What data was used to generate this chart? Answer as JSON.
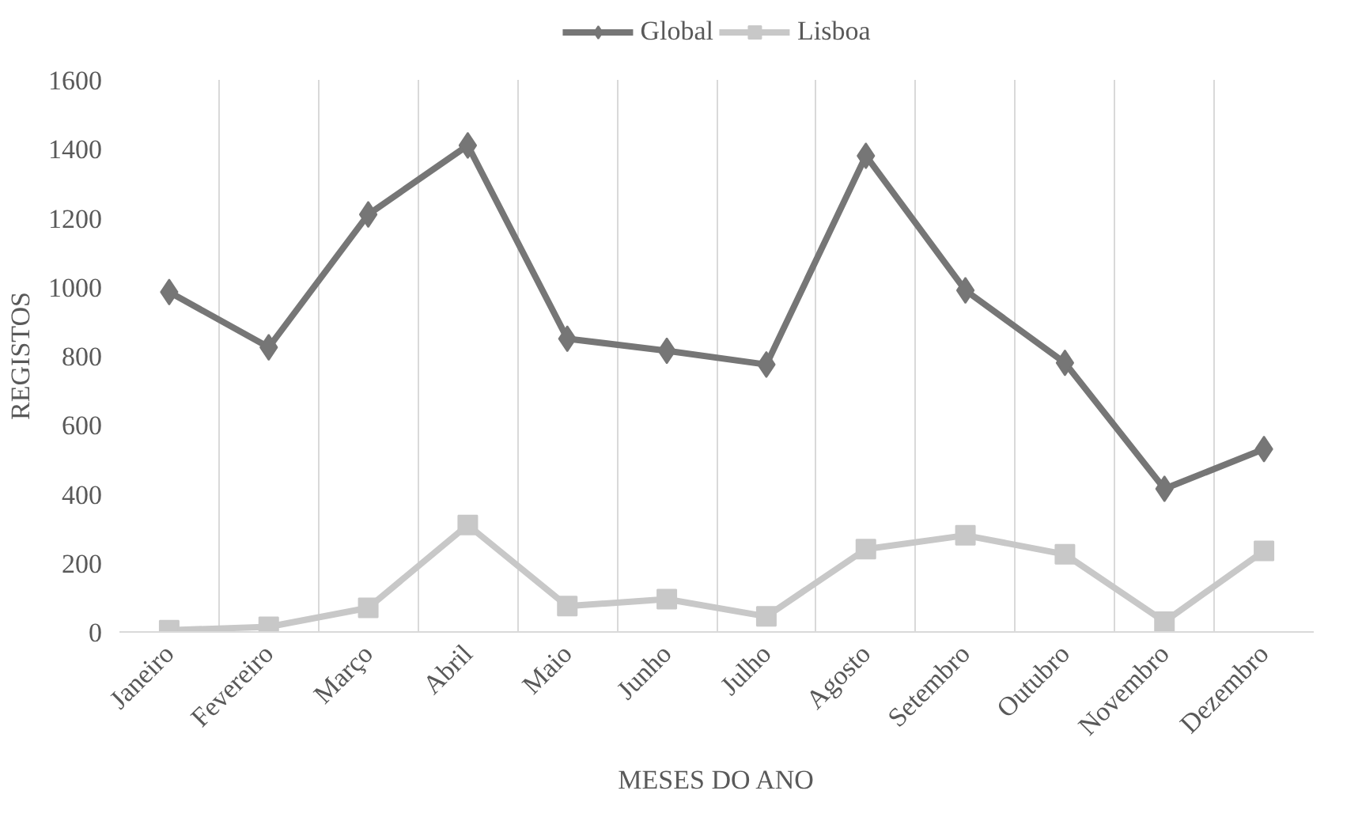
{
  "chart_data": {
    "type": "line",
    "xlabel": "MESES DO ANO",
    "ylabel": "REGISTOS",
    "categories": [
      "Janeiro",
      "Fevereiro",
      "Março",
      "Abril",
      "Maio",
      "Junho",
      "Julho",
      "Agosto",
      "Setembro",
      "Outubro",
      "Novembro",
      "Dezembro"
    ],
    "series": [
      {
        "name": "Global",
        "color": "#767676",
        "marker": "diamond",
        "values": [
          985,
          825,
          1210,
          1410,
          850,
          815,
          775,
          1380,
          990,
          780,
          415,
          530
        ]
      },
      {
        "name": "Lisboa",
        "color": "#c8c8c8",
        "marker": "square",
        "values": [
          5,
          15,
          70,
          310,
          75,
          95,
          45,
          240,
          280,
          225,
          30,
          235
        ]
      }
    ],
    "ylim": [
      0,
      1600
    ],
    "yticks": [
      0,
      200,
      400,
      600,
      800,
      1000,
      1200,
      1400,
      1600
    ],
    "grid": "x",
    "legend": "top",
    "line_style": "solid"
  }
}
